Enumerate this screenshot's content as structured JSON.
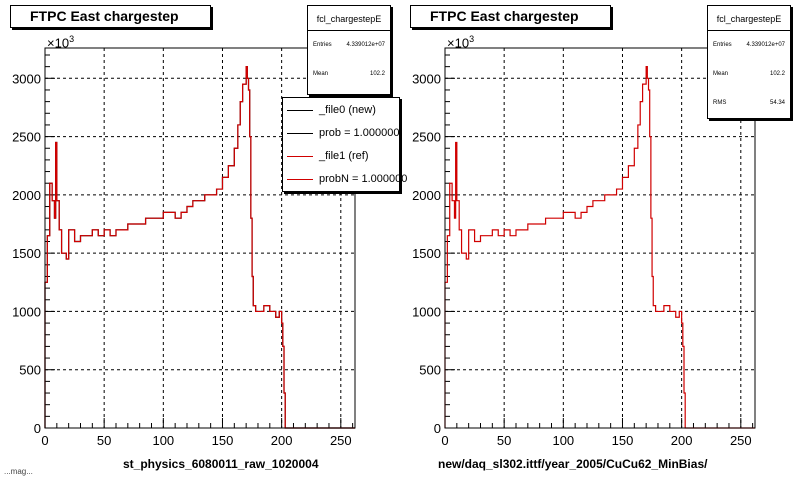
{
  "panels": [
    {
      "title": "FTPC East chargestep",
      "x_axis_title": "st_physics_6080011_raw_1020004",
      "exponent_label": "×10",
      "exponent_power": "3",
      "stats": {
        "title": "fcl_chargestepE",
        "rows": [
          {
            "label": "Entries",
            "value": "4.339012e+07"
          },
          {
            "label": "Mean",
            "value": "102.2"
          }
        ]
      },
      "legend": [
        {
          "label": "_file0 (new)",
          "color": "#000000"
        },
        {
          "label": "prob = 1.000000",
          "color": "#000000"
        },
        {
          "label": "_file1 (ref)",
          "color": "#d00000"
        },
        {
          "label": "probN = 1.000000",
          "color": "#d00000"
        }
      ]
    },
    {
      "title": "FTPC East chargestep",
      "x_axis_title": "new/daq_sl302.ittf/year_2005/CuCu62_MinBias/",
      "exponent_label": "×10",
      "exponent_power": "3",
      "stats": {
        "title": "fcl_chargestepE",
        "rows": [
          {
            "label": "Entries",
            "value": "4.339012e+07"
          },
          {
            "label": "Mean",
            "value": "102.2"
          },
          {
            "label": "RMS",
            "value": "54.34"
          }
        ]
      }
    }
  ],
  "footer_text": "...mag...",
  "colors": {
    "histogram": "#d00000",
    "axis": "#000000",
    "grid": "#000000"
  },
  "chart_data": [
    {
      "type": "line",
      "title": "FTPC East chargestep",
      "xlabel": "st_physics_6080011_raw_1020004",
      "ylabel": "",
      "xlim": [
        0,
        262
      ],
      "ylim": [
        0,
        3260
      ],
      "y_multiplier": "×10^3",
      "x_ticks": [
        0,
        50,
        100,
        150,
        200,
        250
      ],
      "y_ticks": [
        0,
        500,
        1000,
        1500,
        2000,
        2500,
        3000
      ],
      "grid": true,
      "legend_position": "top-right",
      "series": [
        {
          "name": "_file0 (new)",
          "color": "#000000",
          "x": [
            0,
            2,
            4,
            6,
            8,
            9,
            10,
            12,
            14,
            16,
            18,
            20,
            25,
            30,
            35,
            40,
            45,
            50,
            55,
            60,
            65,
            70,
            75,
            80,
            85,
            90,
            95,
            100,
            105,
            110,
            115,
            120,
            125,
            130,
            135,
            140,
            145,
            150,
            155,
            160,
            163,
            165,
            167,
            169,
            170,
            171,
            172,
            173,
            174,
            175,
            176,
            178,
            180,
            185,
            190,
            195,
            198,
            200,
            201,
            202,
            203,
            210,
            220,
            240,
            262
          ],
          "y": [
            1250,
            1650,
            2100,
            1950,
            1800,
            2450,
            1950,
            1700,
            1500,
            1500,
            1450,
            1700,
            1600,
            1650,
            1650,
            1700,
            1650,
            1700,
            1650,
            1700,
            1700,
            1750,
            1750,
            1750,
            1800,
            1800,
            1800,
            1850,
            1850,
            1800,
            1850,
            1900,
            1950,
            1950,
            2000,
            2000,
            2050,
            2150,
            2250,
            2400,
            2600,
            2800,
            2950,
            2950,
            3100,
            3000,
            2900,
            2500,
            1800,
            1300,
            1050,
            1000,
            1000,
            1050,
            1000,
            950,
            1000,
            900,
            700,
            300,
            0,
            0,
            0,
            0,
            0
          ]
        },
        {
          "name": "_file1 (ref)",
          "color": "#d00000",
          "x": [
            0,
            2,
            4,
            6,
            8,
            9,
            10,
            12,
            14,
            16,
            18,
            20,
            25,
            30,
            35,
            40,
            45,
            50,
            55,
            60,
            65,
            70,
            75,
            80,
            85,
            90,
            95,
            100,
            105,
            110,
            115,
            120,
            125,
            130,
            135,
            140,
            145,
            150,
            155,
            160,
            163,
            165,
            167,
            169,
            170,
            171,
            172,
            173,
            174,
            175,
            176,
            178,
            180,
            185,
            190,
            195,
            198,
            200,
            201,
            202,
            203,
            210,
            220,
            240,
            262
          ],
          "y": [
            1250,
            1650,
            2100,
            1950,
            1800,
            2450,
            1950,
            1700,
            1500,
            1500,
            1450,
            1700,
            1600,
            1650,
            1650,
            1700,
            1650,
            1700,
            1650,
            1700,
            1700,
            1750,
            1750,
            1750,
            1800,
            1800,
            1800,
            1850,
            1850,
            1800,
            1850,
            1900,
            1950,
            1950,
            2000,
            2000,
            2050,
            2150,
            2250,
            2400,
            2600,
            2800,
            2950,
            2950,
            3100,
            3000,
            2900,
            2500,
            1800,
            1300,
            1050,
            1000,
            1000,
            1050,
            1000,
            950,
            1000,
            900,
            700,
            300,
            0,
            0,
            0,
            0,
            0
          ]
        }
      ]
    },
    {
      "type": "line",
      "title": "FTPC East chargestep",
      "xlabel": "new/daq_sl302.ittf/year_2005/CuCu62_MinBias/",
      "ylabel": "",
      "xlim": [
        0,
        262
      ],
      "ylim": [
        0,
        3260
      ],
      "y_multiplier": "×10^3",
      "x_ticks": [
        0,
        50,
        100,
        150,
        200,
        250
      ],
      "y_ticks": [
        0,
        500,
        1000,
        1500,
        2000,
        2500,
        3000
      ],
      "grid": true,
      "series": [
        {
          "color": "#d00000",
          "x": [
            0,
            2,
            4,
            6,
            8,
            9,
            10,
            12,
            14,
            16,
            18,
            20,
            25,
            30,
            35,
            40,
            45,
            50,
            55,
            60,
            65,
            70,
            75,
            80,
            85,
            90,
            95,
            100,
            105,
            110,
            115,
            120,
            125,
            130,
            135,
            140,
            145,
            150,
            155,
            160,
            163,
            165,
            167,
            169,
            170,
            171,
            172,
            173,
            174,
            175,
            176,
            178,
            180,
            185,
            190,
            195,
            198,
            200,
            201,
            202,
            203,
            210,
            220,
            240,
            262
          ],
          "y": [
            1250,
            1650,
            2100,
            1950,
            1800,
            2450,
            1950,
            1700,
            1500,
            1500,
            1450,
            1700,
            1600,
            1650,
            1650,
            1700,
            1650,
            1700,
            1650,
            1700,
            1700,
            1750,
            1750,
            1750,
            1800,
            1800,
            1800,
            1850,
            1850,
            1800,
            1850,
            1900,
            1950,
            1950,
            2000,
            2000,
            2050,
            2150,
            2250,
            2400,
            2600,
            2800,
            2950,
            2950,
            3100,
            3000,
            2900,
            2500,
            1800,
            1300,
            1050,
            1000,
            1000,
            1050,
            1000,
            950,
            1000,
            900,
            700,
            300,
            0,
            0,
            0,
            0,
            0
          ]
        }
      ]
    }
  ]
}
